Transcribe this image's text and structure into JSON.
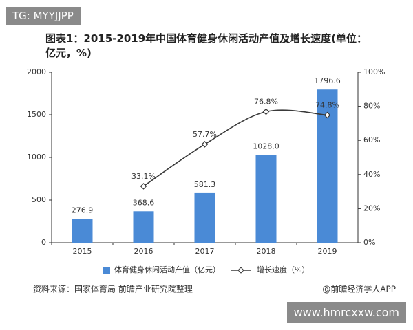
{
  "header": {
    "tag": "TG: MYYJJPP"
  },
  "chart_data": {
    "type": "bar-line",
    "title": "图表1：2015-2019年中国体育健身休闲活动产值及增长速度(单位：亿元，%)",
    "categories": [
      "2015",
      "2016",
      "2017",
      "2018",
      "2019"
    ],
    "series": [
      {
        "name": "体育健身休闲活动产值（亿元）",
        "type": "bar",
        "color": "#4a8ad6",
        "axis": "y",
        "values": [
          276.9,
          368.6,
          581.3,
          1028.0,
          1796.6
        ],
        "value_labels": [
          "276.9",
          "368.6",
          "581.3",
          "1028.0",
          "1796.6"
        ]
      },
      {
        "name": "增长速度（%）",
        "type": "line",
        "color": "#3a3a3a",
        "axis": "y2",
        "values": [
          null,
          33.1,
          57.7,
          76.8,
          74.8
        ],
        "value_labels": [
          null,
          "33.1%",
          "57.7%",
          "76.8%",
          "74.8%"
        ]
      }
    ],
    "ylim": [
      0,
      2000
    ],
    "yticks": [
      0,
      500,
      1000,
      1500,
      2000
    ],
    "y2lim": [
      0,
      100
    ],
    "y2ticks": [
      {
        "value": 0,
        "label": "0%"
      },
      {
        "value": 20,
        "label": "20%"
      },
      {
        "value": 40,
        "label": "40%"
      },
      {
        "value": 60,
        "label": "60%"
      },
      {
        "value": 80,
        "label": "80%"
      },
      {
        "value": 100,
        "label": "100%"
      }
    ],
    "grid": false,
    "legend": "bottom"
  },
  "footer": {
    "source": "资料来源：国家体育局 前瞻产业研究院整理",
    "credit": "@前瞻经济学人APP",
    "watermark": "www.hmrcxxw.com"
  }
}
